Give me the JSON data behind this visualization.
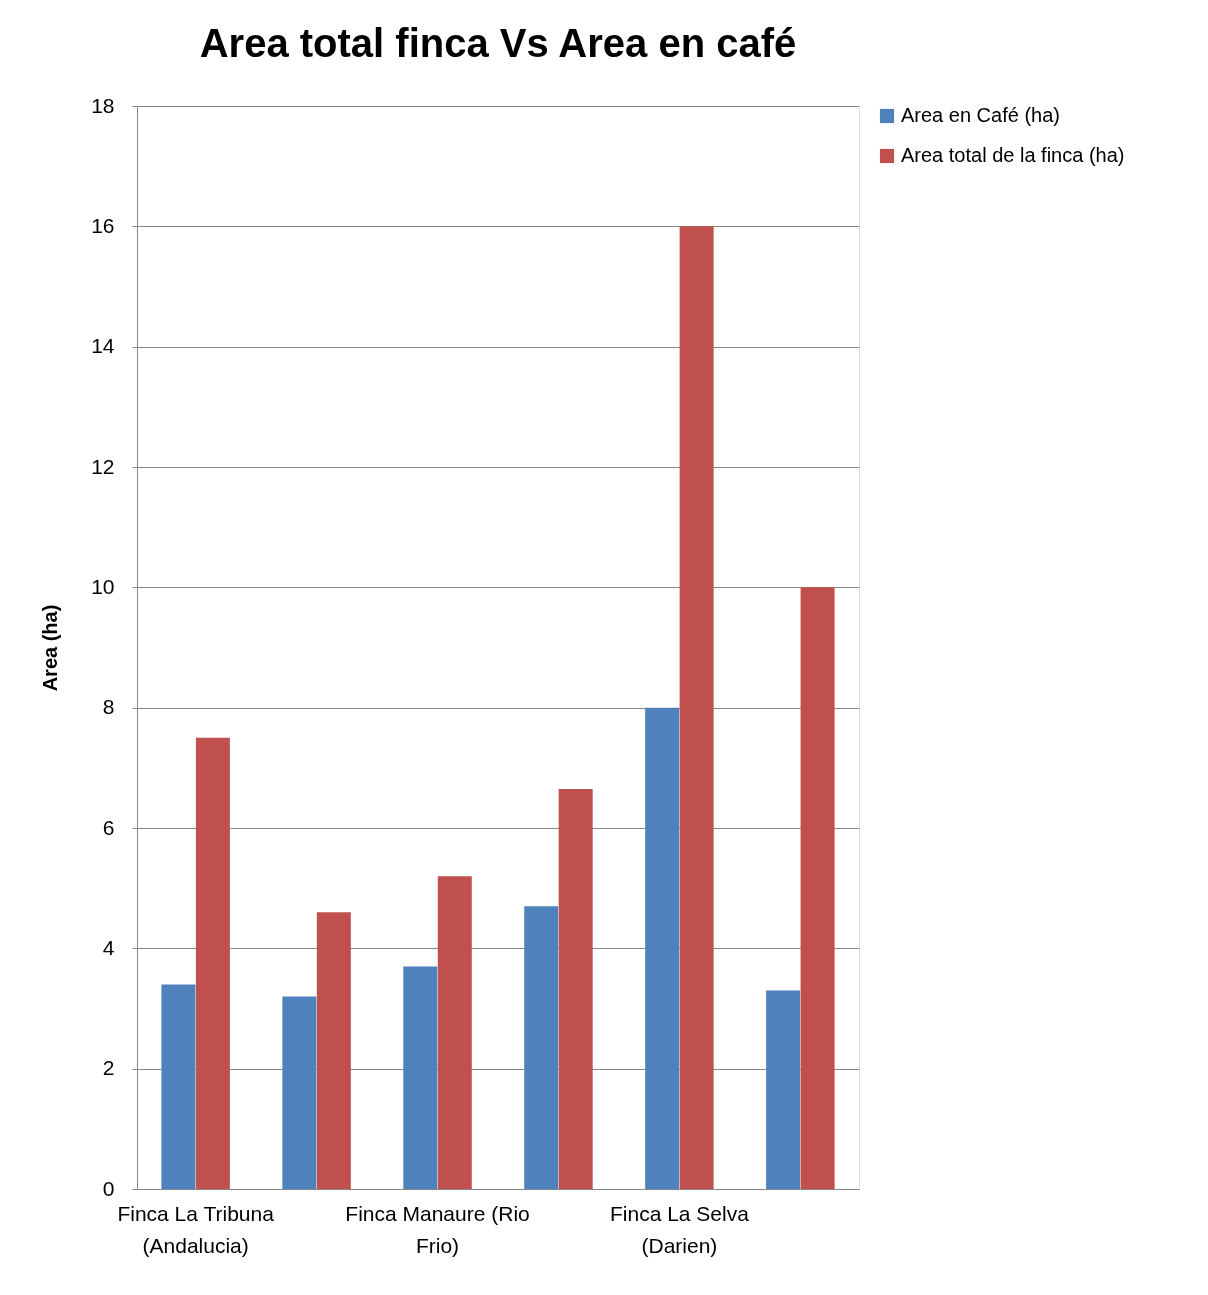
{
  "chart_data": {
    "type": "bar",
    "title": "Area total finca Vs Area en café",
    "ylabel": "Area (ha)",
    "categories": [
      "Finca La Tribuna (Andalucia)",
      null,
      "Finca Manaure (Rio Frio)",
      null,
      "Finca La Selva (Darien)",
      null
    ],
    "series": [
      {
        "name": "Area en Café (ha)",
        "color": "#4f81bd",
        "values": [
          3.4,
          3.2,
          3.7,
          4.7,
          8,
          3.3
        ]
      },
      {
        "name": "Area  total de la finca (ha)",
        "color": "#c0504d",
        "values": [
          7.5,
          4.6,
          5.2,
          6.65,
          16,
          10
        ]
      }
    ],
    "ylim": [
      0,
      18
    ],
    "yticks": [
      0,
      2,
      4,
      6,
      8,
      10,
      12,
      14,
      16,
      18
    ],
    "grid": "y",
    "legend": "right"
  }
}
